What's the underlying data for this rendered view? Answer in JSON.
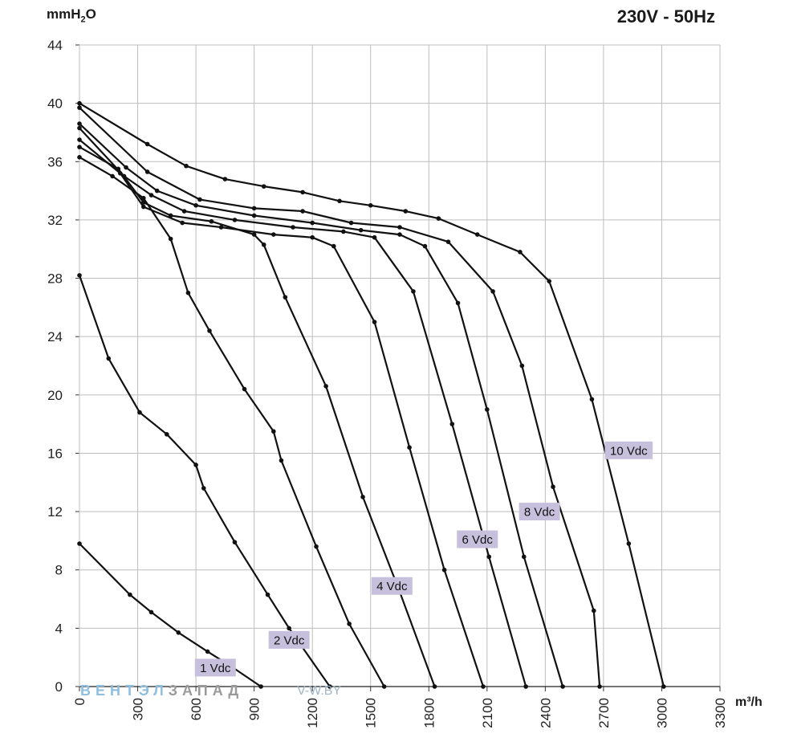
{
  "header": {
    "y_unit_main": "mmH",
    "y_unit_sub": "2",
    "y_unit_tail": "O",
    "title": "230V - 50Hz",
    "x_unit": "m³/h"
  },
  "watermark": {
    "part1": "ВЕНТЭЛ",
    "part2": "ЗАПАД",
    "site": "V-W.BY"
  },
  "chart_data": {
    "type": "line",
    "title": "230V - 50Hz",
    "xlabel": "m³/h",
    "ylabel": "mmH2O",
    "xlim": [
      0,
      3300
    ],
    "ylim": [
      0,
      44
    ],
    "grid": true,
    "x_ticks": [
      0,
      300,
      600,
      900,
      1200,
      1500,
      1800,
      2100,
      2400,
      2700,
      3000,
      3300
    ],
    "y_ticks": [
      0,
      4,
      8,
      12,
      16,
      20,
      24,
      28,
      32,
      36,
      40,
      44
    ],
    "series": [
      {
        "name": "1 Vdc",
        "points": [
          [
            0,
            9.8
          ],
          [
            260,
            6.3
          ],
          [
            370,
            5.1
          ],
          [
            510,
            3.7
          ],
          [
            660,
            2.4
          ],
          [
            780,
            1.4
          ],
          [
            935,
            0
          ]
        ]
      },
      {
        "name": "2 Vdc",
        "points": [
          [
            0,
            28.2
          ],
          [
            150,
            22.5
          ],
          [
            310,
            18.8
          ],
          [
            450,
            17.3
          ],
          [
            600,
            15.2
          ],
          [
            640,
            13.6
          ],
          [
            800,
            9.9
          ],
          [
            970,
            6.3
          ],
          [
            1080,
            4.0
          ],
          [
            1290,
            0
          ]
        ]
      },
      {
        "name": "",
        "points": [
          [
            0,
            36.3
          ],
          [
            170,
            35.0
          ],
          [
            330,
            33.5
          ],
          [
            470,
            30.7
          ],
          [
            560,
            27.0
          ],
          [
            670,
            24.4
          ],
          [
            850,
            20.4
          ],
          [
            1000,
            17.5
          ],
          [
            1040,
            15.5
          ],
          [
            1220,
            9.6
          ],
          [
            1390,
            4.3
          ],
          [
            1570,
            0
          ]
        ]
      },
      {
        "name": "",
        "points": [
          [
            0,
            37.0
          ],
          [
            200,
            35.5
          ],
          [
            330,
            33.2
          ],
          [
            470,
            32.3
          ],
          [
            680,
            31.9
          ],
          [
            900,
            31.0
          ],
          [
            950,
            30.3
          ],
          [
            1060,
            26.7
          ],
          [
            1270,
            20.6
          ],
          [
            1460,
            13.0
          ],
          [
            1650,
            6.5
          ],
          [
            1830,
            0
          ]
        ]
      },
      {
        "name": "4 Vdc",
        "points": [
          [
            0,
            37.5
          ],
          [
            210,
            35.2
          ],
          [
            330,
            32.9
          ],
          [
            530,
            31.8
          ],
          [
            730,
            31.5
          ],
          [
            1000,
            31.0
          ],
          [
            1200,
            30.8
          ],
          [
            1310,
            30.2
          ],
          [
            1520,
            25.0
          ],
          [
            1700,
            16.4
          ],
          [
            1880,
            8.0
          ],
          [
            2080,
            0
          ]
        ]
      },
      {
        "name": "",
        "points": [
          [
            0,
            38.3
          ],
          [
            230,
            35.0
          ],
          [
            370,
            33.7
          ],
          [
            540,
            32.6
          ],
          [
            800,
            32.0
          ],
          [
            1100,
            31.5
          ],
          [
            1360,
            31.2
          ],
          [
            1520,
            30.8
          ],
          [
            1720,
            27.1
          ],
          [
            1920,
            18.0
          ],
          [
            2110,
            8.9
          ],
          [
            2300,
            0
          ]
        ]
      },
      {
        "name": "6 Vdc",
        "points": [
          [
            0,
            38.6
          ],
          [
            240,
            35.6
          ],
          [
            400,
            34.0
          ],
          [
            600,
            33.0
          ],
          [
            900,
            32.3
          ],
          [
            1200,
            31.8
          ],
          [
            1450,
            31.3
          ],
          [
            1650,
            31.0
          ],
          [
            1780,
            30.2
          ],
          [
            1950,
            26.3
          ],
          [
            2100,
            19.0
          ],
          [
            2290,
            8.9
          ],
          [
            2490,
            0
          ]
        ]
      },
      {
        "name": "8 Vdc",
        "points": [
          [
            0,
            39.7
          ],
          [
            350,
            35.3
          ],
          [
            620,
            33.4
          ],
          [
            900,
            32.8
          ],
          [
            1150,
            32.6
          ],
          [
            1400,
            31.8
          ],
          [
            1650,
            31.5
          ],
          [
            1900,
            30.5
          ],
          [
            2130,
            27.1
          ],
          [
            2280,
            22.0
          ],
          [
            2440,
            13.7
          ],
          [
            2650,
            5.2
          ],
          [
            2680,
            0
          ]
        ]
      },
      {
        "name": "10 Vdc",
        "points": [
          [
            0,
            40.0
          ],
          [
            350,
            37.2
          ],
          [
            550,
            35.7
          ],
          [
            750,
            34.8
          ],
          [
            950,
            34.3
          ],
          [
            1150,
            33.9
          ],
          [
            1340,
            33.3
          ],
          [
            1500,
            33.0
          ],
          [
            1680,
            32.6
          ],
          [
            1850,
            32.1
          ],
          [
            2050,
            31.0
          ],
          [
            2270,
            29.8
          ],
          [
            2420,
            27.8
          ],
          [
            2640,
            19.7
          ],
          [
            2830,
            9.8
          ],
          [
            3010,
            0
          ]
        ]
      }
    ],
    "label_positions": [
      {
        "text": "1 Vdc",
        "x": 700,
        "y": 1.3
      },
      {
        "text": "2 Vdc",
        "x": 1080,
        "y": 3.2
      },
      {
        "text": "4 Vdc",
        "x": 1610,
        "y": 6.9
      },
      {
        "text": "6 Vdc",
        "x": 2050,
        "y": 10.1
      },
      {
        "text": "8 Vdc",
        "x": 2370,
        "y": 12.0
      },
      {
        "text": "10 Vdc",
        "x": 2830,
        "y": 16.2
      }
    ]
  }
}
